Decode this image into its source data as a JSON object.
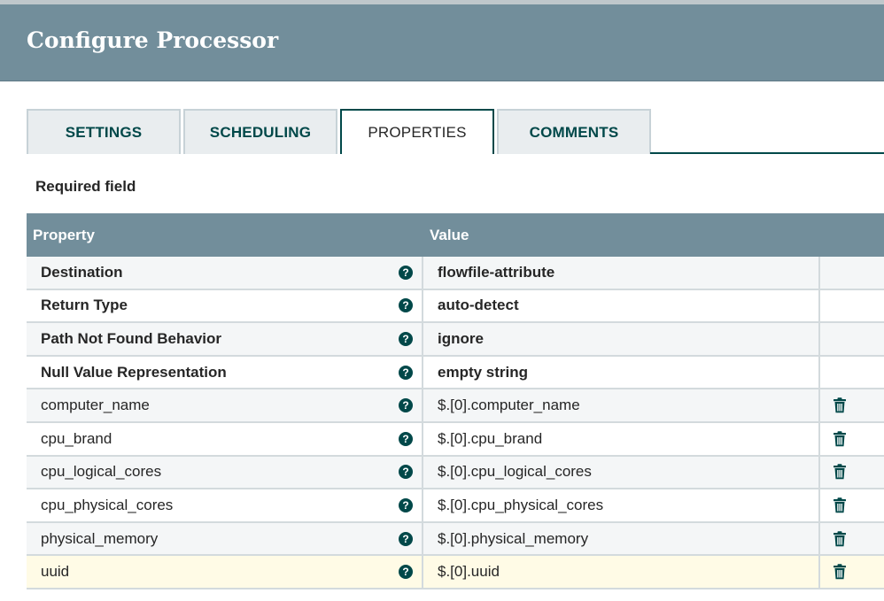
{
  "dialog": {
    "title": "Configure Processor"
  },
  "tabs": [
    {
      "label": "SETTINGS"
    },
    {
      "label": "SCHEDULING"
    },
    {
      "label": "PROPERTIES",
      "active": true
    },
    {
      "label": "COMMENTS"
    }
  ],
  "required_note": "Required field",
  "table": {
    "headers": {
      "property": "Property",
      "value": "Value"
    },
    "rows": [
      {
        "property": "Destination",
        "value": "flowfile-attribute",
        "required": true,
        "deletable": false
      },
      {
        "property": "Return Type",
        "value": "auto-detect",
        "required": true,
        "deletable": false
      },
      {
        "property": "Path Not Found Behavior",
        "value": "ignore",
        "required": true,
        "deletable": false
      },
      {
        "property": "Null Value Representation",
        "value": "empty string",
        "required": true,
        "deletable": false
      },
      {
        "property": "computer_name",
        "value": "$.[0].computer_name",
        "required": false,
        "deletable": true
      },
      {
        "property": "cpu_brand",
        "value": "$.[0].cpu_brand",
        "required": false,
        "deletable": true
      },
      {
        "property": "cpu_logical_cores",
        "value": "$.[0].cpu_logical_cores",
        "required": false,
        "deletable": true
      },
      {
        "property": "cpu_physical_cores",
        "value": "$.[0].cpu_physical_cores",
        "required": false,
        "deletable": true
      },
      {
        "property": "physical_memory",
        "value": "$.[0].physical_memory",
        "required": false,
        "deletable": true
      },
      {
        "property": "uuid",
        "value": "$.[0].uuid",
        "required": false,
        "deletable": true,
        "selected": true
      }
    ]
  },
  "icons": {
    "help": "question-circle-icon",
    "delete": "trash-icon"
  },
  "colors": {
    "header": "#728e9b",
    "accent": "#004849",
    "selected_row": "#fffbe6"
  }
}
